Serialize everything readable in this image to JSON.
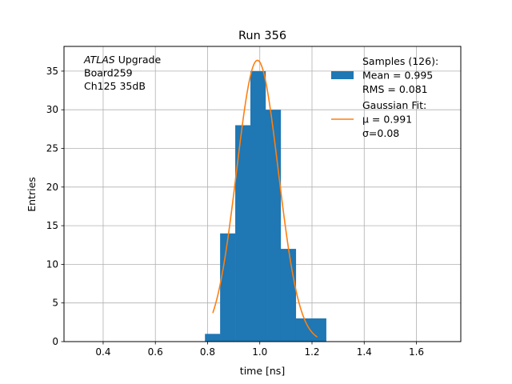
{
  "chart_data": {
    "type": "bar",
    "title": "Run 356",
    "xlabel": "time [ns]",
    "ylabel": "Entries",
    "xlim": [
      0.25,
      1.77
    ],
    "ylim": [
      0,
      38.2
    ],
    "grid": true,
    "legend_position": "top-right",
    "xticks": [
      0.4,
      0.6,
      0.8,
      1.0,
      1.2,
      1.4,
      1.6
    ],
    "xtick_labels": [
      "0.4",
      "0.6",
      "0.8",
      "1.0",
      "1.2",
      "1.4",
      "1.6"
    ],
    "yticks": [
      0,
      5,
      10,
      15,
      20,
      25,
      30,
      35
    ],
    "ytick_labels": [
      "0",
      "5",
      "10",
      "15",
      "20",
      "25",
      "30",
      "35"
    ],
    "histogram": {
      "color": "#1f77b4",
      "bin_edges": [
        0.79,
        0.848,
        0.906,
        0.964,
        1.022,
        1.08,
        1.138,
        1.196,
        1.254
      ],
      "counts": [
        1,
        14,
        28,
        35,
        30,
        12,
        3,
        3
      ]
    },
    "fit": {
      "color": "#ff7f0e",
      "function": "gaussian",
      "mu": 0.991,
      "sigma": 0.08,
      "amplitude": 36.4,
      "x_range": [
        0.82,
        1.22
      ]
    },
    "annotation_lines": [
      {
        "italic": "ATLAS",
        "text": " Upgrade"
      },
      {
        "italic": "",
        "text": " Board259"
      },
      {
        "italic": "",
        "text": " Ch125 35dB"
      }
    ],
    "legend": [
      {
        "kind": "patch",
        "color": "#1f77b4",
        "lines": [
          "Samples (126):",
          " Mean = 0.995",
          " RMS = 0.081"
        ]
      },
      {
        "kind": "line",
        "color": "#ff7f0e",
        "lines": [
          "Gaussian Fit:",
          " μ = 0.991",
          " σ=0.08"
        ]
      }
    ]
  }
}
